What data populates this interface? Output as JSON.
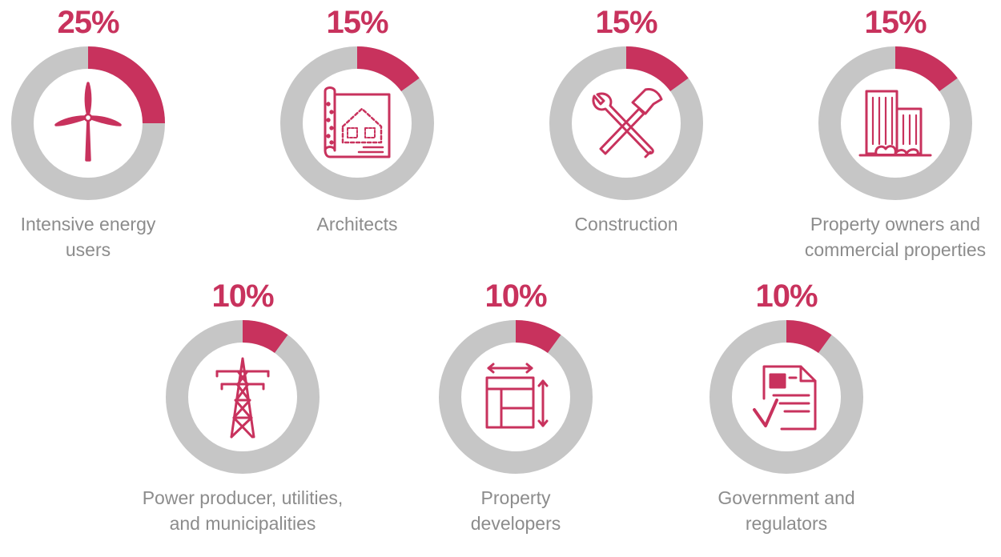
{
  "colors": {
    "accent": "#c8325d",
    "track": "#c6c6c6",
    "text": "#8c8c8c"
  },
  "chart_data": {
    "type": "pie",
    "items": [
      {
        "label_lines": [
          "Intensive energy",
          "users"
        ],
        "percent_label": "25%",
        "value": 25,
        "icon": "wind-turbine-icon"
      },
      {
        "label_lines": [
          "Architects"
        ],
        "percent_label": "15%",
        "value": 15,
        "icon": "blueprint-icon"
      },
      {
        "label_lines": [
          "Construction"
        ],
        "percent_label": "15%",
        "value": 15,
        "icon": "wrench-hammer-icon"
      },
      {
        "label_lines": [
          "Property owners and",
          "commercial properties"
        ],
        "percent_label": "15%",
        "value": 15,
        "icon": "buildings-icon"
      },
      {
        "label_lines": [
          "Power producer, utilities,",
          "and municipalities"
        ],
        "percent_label": "10%",
        "value": 10,
        "icon": "power-tower-icon"
      },
      {
        "label_lines": [
          "Property",
          "developers"
        ],
        "percent_label": "10%",
        "value": 10,
        "icon": "floor-plan-icon"
      },
      {
        "label_lines": [
          "Government and",
          "regulators"
        ],
        "percent_label": "10%",
        "value": 10,
        "icon": "document-check-icon"
      }
    ]
  }
}
